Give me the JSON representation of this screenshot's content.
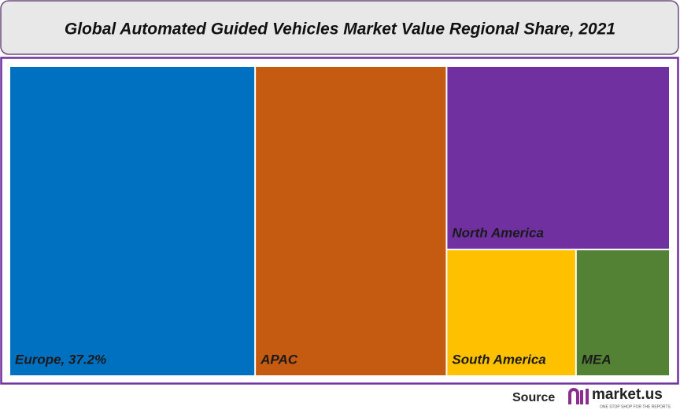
{
  "chart_data": {
    "type": "treemap",
    "title": "Global Automated Guided Vehicles Market Value Regional Share, 2021",
    "categories": [
      "Europe, 37.2%",
      "APAC",
      "North America",
      "South America",
      "MEA"
    ],
    "values": [
      37.2,
      29,
      20,
      8,
      5.8
    ],
    "colors": [
      "#0070c0",
      "#c55a11",
      "#7030a0",
      "#ffc000",
      "#548235"
    ]
  },
  "footer": {
    "source": "Source",
    "logo": "market.us",
    "tagline": "ONE STOP SHOP FOR THE REPORTS"
  }
}
